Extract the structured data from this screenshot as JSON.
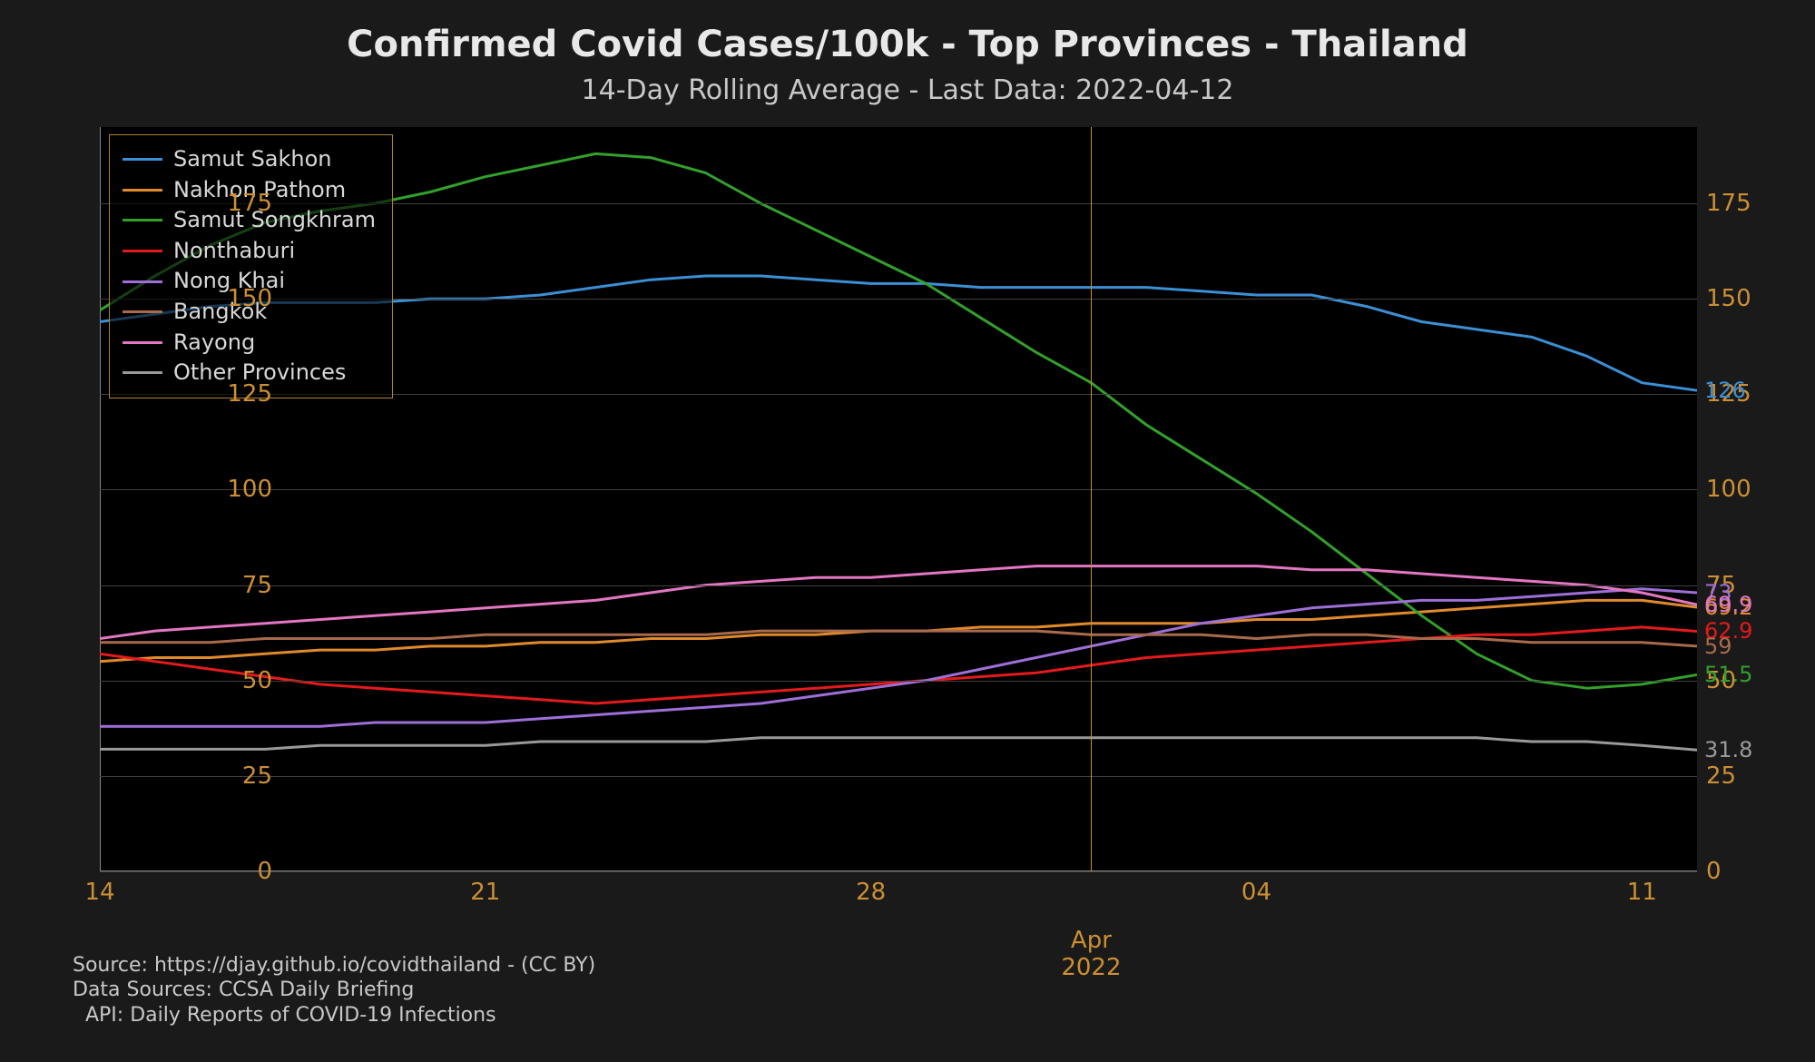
{
  "chart": {
    "type": "line",
    "title": "Confirmed Covid Cases/100k - Top Provinces - Thailand",
    "subtitle": "14-Day Rolling Average - Last Data: 2022-04-12",
    "background_outer": "#1a1a1a",
    "background_plot": "#000000",
    "grid_color": "#404040",
    "tick_color": "#cc8f33",
    "title_color": "#e8e8e8",
    "subtitle_color": "#c8c8c8",
    "title_fontsize": 40,
    "subtitle_fontsize": 30,
    "tick_fontsize": 26,
    "line_width": 3,
    "x_start": "2022-03-14",
    "x_end": "2022-04-12",
    "x_days": 29,
    "xticks": [
      {
        "day_index": 0,
        "label": "14"
      },
      {
        "day_index": 7,
        "label": "21"
      },
      {
        "day_index": 14,
        "label": "28"
      },
      {
        "day_index": 21,
        "label": "04"
      },
      {
        "day_index": 28,
        "label": "11"
      }
    ],
    "month_marker": {
      "day_index": 18,
      "label_line1": "Apr",
      "label_line2": "2022"
    },
    "ylim": [
      0,
      195
    ],
    "yticks": [
      0,
      25,
      50,
      75,
      100,
      125,
      150,
      175
    ],
    "series": [
      {
        "name": "Samut Sakhon",
        "color": "#3b8fd4",
        "end_label": "126",
        "values": [
          144,
          146,
          148,
          149,
          149,
          149,
          150,
          150,
          151,
          153,
          155,
          156,
          156,
          155,
          154,
          154,
          153,
          153,
          153,
          153,
          152,
          151,
          151,
          148,
          144,
          142,
          140,
          135,
          128,
          126
        ]
      },
      {
        "name": "Nakhon Pathom",
        "color": "#e08a2c",
        "end_label": "69.2",
        "values": [
          55,
          56,
          56,
          57,
          58,
          58,
          59,
          59,
          60,
          60,
          61,
          61,
          62,
          62,
          63,
          63,
          64,
          64,
          65,
          65,
          65,
          66,
          66,
          67,
          68,
          69,
          70,
          71,
          71,
          69.2
        ]
      },
      {
        "name": "Samut Songkhram",
        "color": "#33a02c",
        "end_label": "51.5",
        "values": [
          147,
          156,
          164,
          170,
          173,
          175,
          178,
          182,
          185,
          188,
          187,
          183,
          175,
          168,
          161,
          154,
          145,
          136,
          128,
          117,
          108,
          99,
          89,
          78,
          67,
          57,
          50,
          48,
          49,
          51.5
        ]
      },
      {
        "name": "Nonthaburi",
        "color": "#e41a1c",
        "end_label": "62.9",
        "values": [
          57,
          55,
          53,
          51,
          49,
          48,
          47,
          46,
          45,
          44,
          45,
          46,
          47,
          48,
          49,
          50,
          51,
          52,
          54,
          56,
          57,
          58,
          59,
          60,
          61,
          62,
          62,
          63,
          64,
          62.9
        ]
      },
      {
        "name": "Nong Khai",
        "color": "#9e6fd8",
        "end_label": "73",
        "values": [
          38,
          38,
          38,
          38,
          38,
          39,
          39,
          39,
          40,
          41,
          42,
          43,
          44,
          46,
          48,
          50,
          53,
          56,
          59,
          62,
          65,
          67,
          69,
          70,
          71,
          71,
          72,
          73,
          74,
          73
        ]
      },
      {
        "name": "Bangkok",
        "color": "#a86b4c",
        "end_label": "59",
        "values": [
          60,
          60,
          60,
          61,
          61,
          61,
          61,
          62,
          62,
          62,
          62,
          62,
          63,
          63,
          63,
          63,
          63,
          63,
          62,
          62,
          62,
          61,
          62,
          62,
          61,
          61,
          60,
          60,
          60,
          59
        ]
      },
      {
        "name": "Rayong",
        "color": "#e377c2",
        "end_label": "69.9",
        "values": [
          61,
          63,
          64,
          65,
          66,
          67,
          68,
          69,
          70,
          71,
          73,
          75,
          76,
          77,
          77,
          78,
          79,
          80,
          80,
          80,
          80,
          80,
          79,
          79,
          78,
          77,
          76,
          75,
          73,
          69.9
        ]
      },
      {
        "name": "Other Provinces",
        "color": "#999999",
        "end_label": "31.8",
        "values": [
          32,
          32,
          32,
          32,
          33,
          33,
          33,
          33,
          34,
          34,
          34,
          34,
          35,
          35,
          35,
          35,
          35,
          35,
          35,
          35,
          35,
          35,
          35,
          35,
          35,
          35,
          34,
          34,
          33,
          31.8
        ]
      }
    ],
    "legend": {
      "border_color": "#b08030",
      "bg_color": "rgba(0,0,0,0.6)"
    },
    "credits": {
      "line1": "Source: https://djay.github.io/covidthailand - (CC BY)",
      "line2": "Data Sources: CCSA Daily Briefing",
      "line3": "  API: Daily Reports of COVID-19 Infections"
    }
  }
}
